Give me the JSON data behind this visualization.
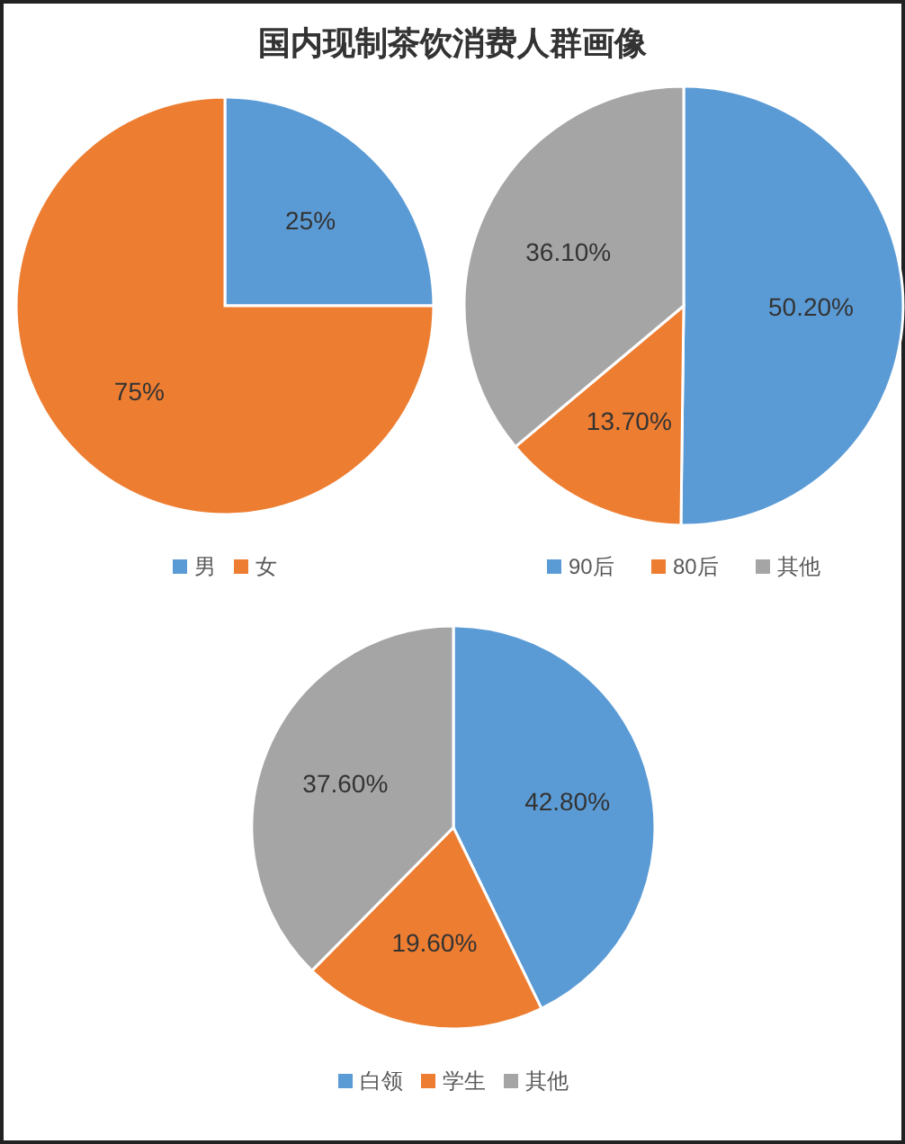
{
  "chart_data": [
    {
      "type": "pie",
      "title": "国内现制茶饮消费人群画像",
      "categories": [
        "男",
        "女"
      ],
      "values": [
        25,
        75
      ],
      "value_labels": [
        "25%",
        "75%"
      ],
      "colors": [
        "#5b9bd5",
        "#ed7d31"
      ],
      "legend": "bottom"
    },
    {
      "type": "pie",
      "categories": [
        "90后",
        "80后",
        "其他"
      ],
      "values": [
        50.2,
        13.7,
        36.1
      ],
      "value_labels": [
        "50.20%",
        "13.70%",
        "36.10%"
      ],
      "colors": [
        "#5b9bd5",
        "#ed7d31",
        "#a5a5a5"
      ],
      "legend": "bottom"
    },
    {
      "type": "pie",
      "categories": [
        "白领",
        "学生",
        "其他"
      ],
      "values": [
        42.8,
        19.6,
        37.6
      ],
      "value_labels": [
        "42.80%",
        "19.60%",
        "37.60%"
      ],
      "colors": [
        "#5b9bd5",
        "#ed7d31",
        "#a5a5a5"
      ],
      "legend": "bottom"
    }
  ]
}
